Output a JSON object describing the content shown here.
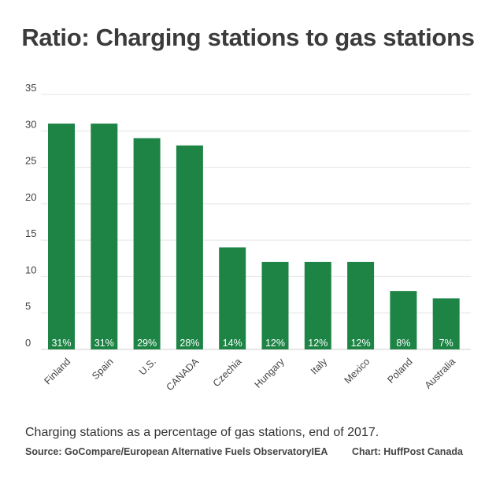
{
  "chart_data": {
    "type": "bar",
    "title": "Ratio: Charging stations to gas stations",
    "subtitle": "Charging stations as a percentage of gas stations, end of 2017.",
    "source": "Source: GoCompare/European Alternative Fuels ObservatoryIEA",
    "credit": "Chart: HuffPost Canada",
    "categories": [
      "Finland",
      "Spain",
      "U.S.",
      "CANADA",
      "Czechia",
      "Hungary",
      "Italy",
      "Mexico",
      "Poland",
      "Australia"
    ],
    "values": [
      31,
      31,
      29,
      28,
      14,
      12,
      12,
      12,
      8,
      7
    ],
    "data_labels": [
      "31%",
      "31%",
      "29%",
      "28%",
      "14%",
      "12%",
      "12%",
      "12%",
      "8%",
      "7%"
    ],
    "ylim": [
      0,
      35
    ],
    "yticks": [
      0,
      5,
      10,
      15,
      20,
      25,
      30,
      35
    ],
    "grid": true,
    "legend": "none",
    "bar_color": "#1e8446",
    "label_color": "#ffffff"
  }
}
